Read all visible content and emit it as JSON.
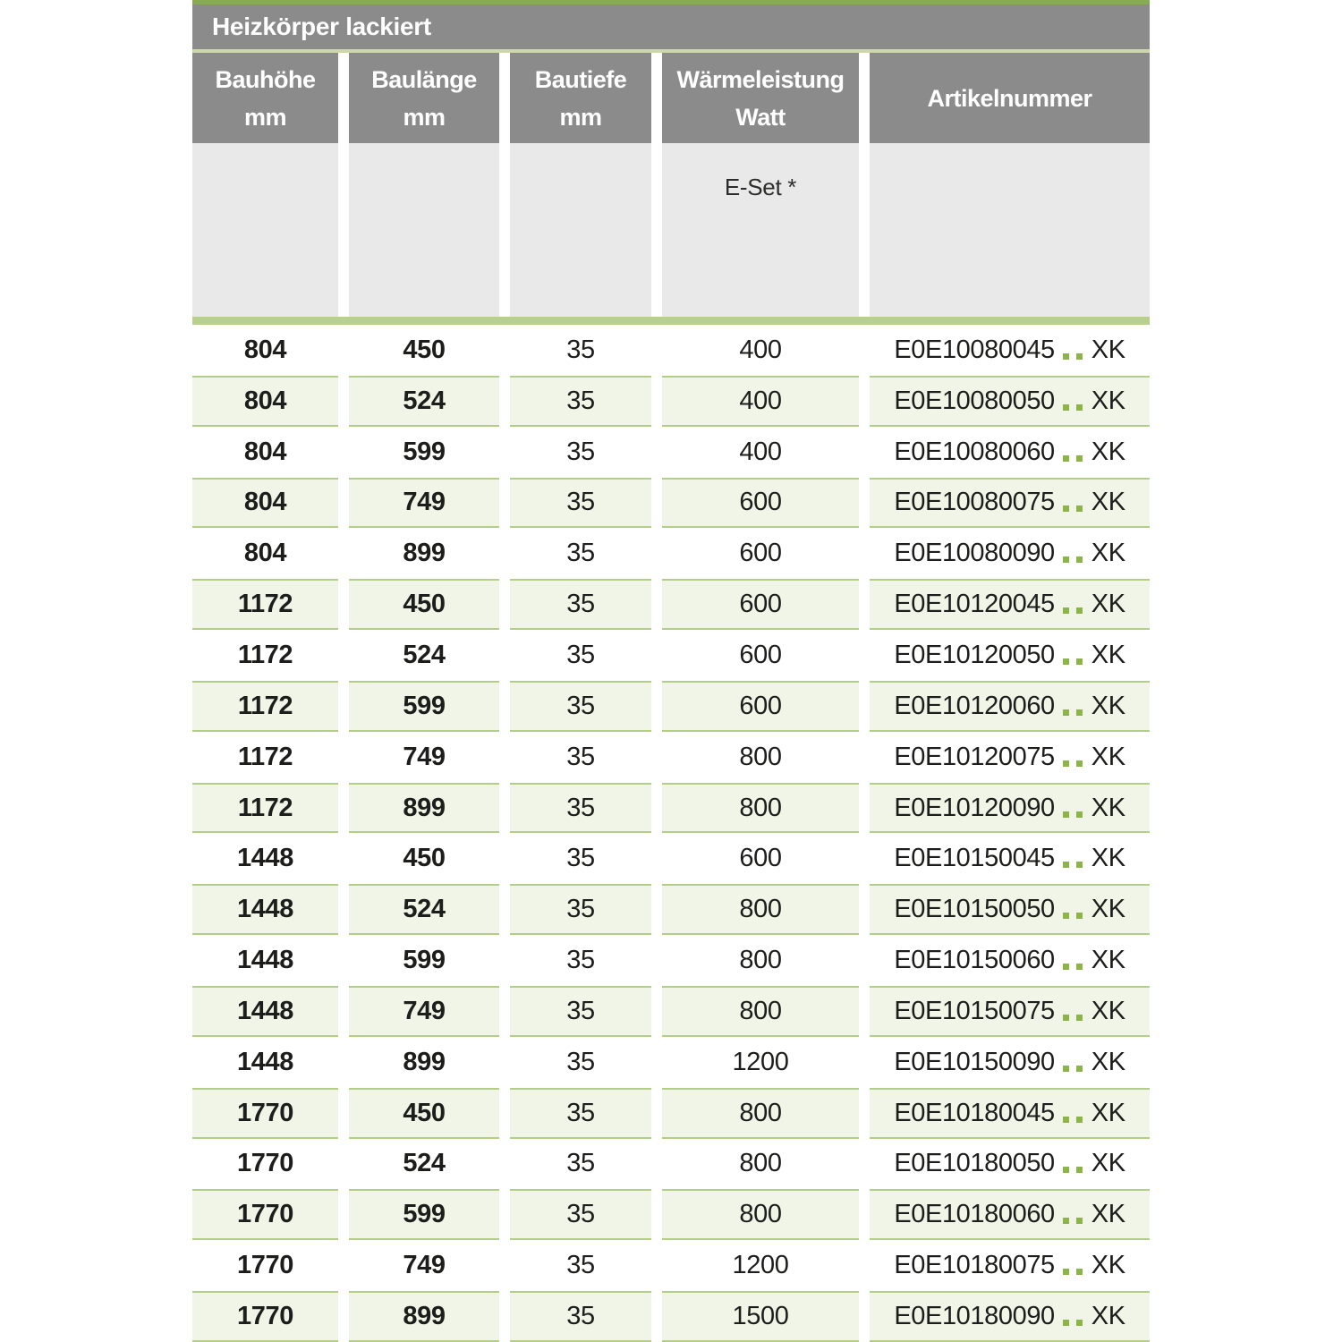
{
  "colors": {
    "accent-green": "#87aa55",
    "pale-green": "#ccd8a9",
    "thick-green": "#b7d18c",
    "row-green-bg": "#f0f5e8",
    "row-green-border": "#b3cf87",
    "dot-green": "#8cb449",
    "header-gray": "#8b8b8b",
    "subheader-gray": "#e9e9e9",
    "text-dark": "#1d1d1b"
  },
  "table": {
    "title": "Heizkörper lackiert",
    "columns": [
      {
        "line1": "Bauhöhe",
        "line2": "mm"
      },
      {
        "line1": "Baulänge",
        "line2": "mm"
      },
      {
        "line1": "Bautiefe",
        "line2": "mm"
      },
      {
        "line1": "Wärmeleistung",
        "line2": "Watt"
      },
      {
        "line1": "Artikelnummer",
        "line2": ""
      }
    ],
    "eset_label": "E-Set *",
    "rows": [
      {
        "bauhoehe": "804",
        "baulaenge": "450",
        "bautiefe": "35",
        "watt": "400",
        "artikel": "E0E10080045",
        "suffix": "XK"
      },
      {
        "bauhoehe": "804",
        "baulaenge": "524",
        "bautiefe": "35",
        "watt": "400",
        "artikel": "E0E10080050",
        "suffix": "XK"
      },
      {
        "bauhoehe": "804",
        "baulaenge": "599",
        "bautiefe": "35",
        "watt": "400",
        "artikel": "E0E10080060",
        "suffix": "XK"
      },
      {
        "bauhoehe": "804",
        "baulaenge": "749",
        "bautiefe": "35",
        "watt": "600",
        "artikel": "E0E10080075",
        "suffix": "XK"
      },
      {
        "bauhoehe": "804",
        "baulaenge": "899",
        "bautiefe": "35",
        "watt": "600",
        "artikel": "E0E10080090",
        "suffix": "XK"
      },
      {
        "bauhoehe": "1172",
        "baulaenge": "450",
        "bautiefe": "35",
        "watt": "600",
        "artikel": "E0E10120045",
        "suffix": "XK"
      },
      {
        "bauhoehe": "1172",
        "baulaenge": "524",
        "bautiefe": "35",
        "watt": "600",
        "artikel": "E0E10120050",
        "suffix": "XK"
      },
      {
        "bauhoehe": "1172",
        "baulaenge": "599",
        "bautiefe": "35",
        "watt": "600",
        "artikel": "E0E10120060",
        "suffix": "XK"
      },
      {
        "bauhoehe": "1172",
        "baulaenge": "749",
        "bautiefe": "35",
        "watt": "800",
        "artikel": "E0E10120075",
        "suffix": "XK"
      },
      {
        "bauhoehe": "1172",
        "baulaenge": "899",
        "bautiefe": "35",
        "watt": "800",
        "artikel": "E0E10120090",
        "suffix": "XK"
      },
      {
        "bauhoehe": "1448",
        "baulaenge": "450",
        "bautiefe": "35",
        "watt": "600",
        "artikel": "E0E10150045",
        "suffix": "XK"
      },
      {
        "bauhoehe": "1448",
        "baulaenge": "524",
        "bautiefe": "35",
        "watt": "800",
        "artikel": "E0E10150050",
        "suffix": "XK"
      },
      {
        "bauhoehe": "1448",
        "baulaenge": "599",
        "bautiefe": "35",
        "watt": "800",
        "artikel": "E0E10150060",
        "suffix": "XK"
      },
      {
        "bauhoehe": "1448",
        "baulaenge": "749",
        "bautiefe": "35",
        "watt": "800",
        "artikel": "E0E10150075",
        "suffix": "XK"
      },
      {
        "bauhoehe": "1448",
        "baulaenge": "899",
        "bautiefe": "35",
        "watt": "1200",
        "artikel": "E0E10150090",
        "suffix": "XK"
      },
      {
        "bauhoehe": "1770",
        "baulaenge": "450",
        "bautiefe": "35",
        "watt": "800",
        "artikel": "E0E10180045",
        "suffix": "XK"
      },
      {
        "bauhoehe": "1770",
        "baulaenge": "524",
        "bautiefe": "35",
        "watt": "800",
        "artikel": "E0E10180050",
        "suffix": "XK"
      },
      {
        "bauhoehe": "1770",
        "baulaenge": "599",
        "bautiefe": "35",
        "watt": "800",
        "artikel": "E0E10180060",
        "suffix": "XK"
      },
      {
        "bauhoehe": "1770",
        "baulaenge": "749",
        "bautiefe": "35",
        "watt": "1200",
        "artikel": "E0E10180075",
        "suffix": "XK"
      },
      {
        "bauhoehe": "1770",
        "baulaenge": "899",
        "bautiefe": "35",
        "watt": "1500",
        "artikel": "E0E10180090",
        "suffix": "XK"
      }
    ]
  }
}
